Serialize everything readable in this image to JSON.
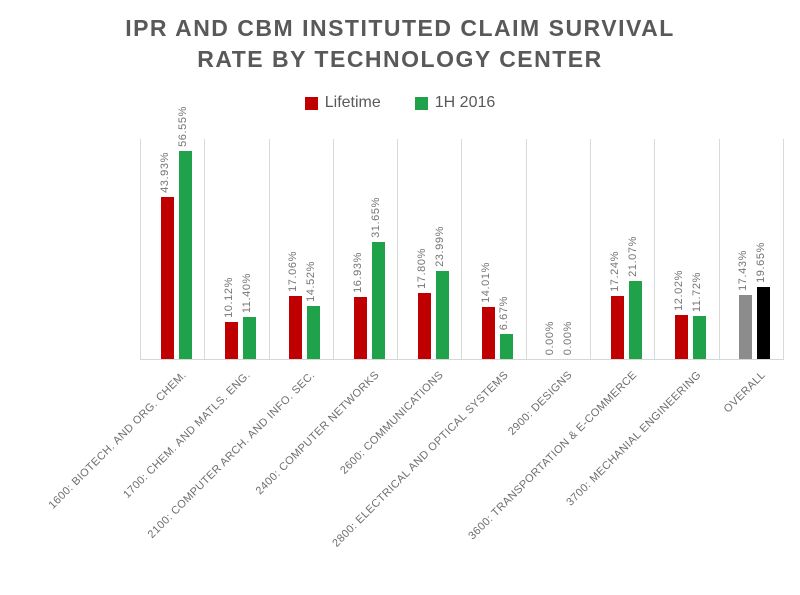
{
  "title_line1": "IPR AND CBM INSTITUTED CLAIM SURVIVAL",
  "title_line2": "RATE BY TECHNOLOGY CENTER",
  "colors": {
    "lifetime_red": "#c00000",
    "h1_2016_green": "#1fa24a",
    "overall_lifetime_gray": "#8c8c8c",
    "overall_1h2016_black": "#000000",
    "gridline": "#d9d9d9",
    "title_text": "#595959",
    "label_text": "#757575"
  },
  "chart_data": {
    "type": "bar",
    "title": "IPR AND CBM INSTITUTED CLAIM SURVIVAL RATE BY TECHNOLOGY CENTER",
    "xlabel": "",
    "ylabel": "",
    "ylim": [
      0,
      60
    ],
    "grid": "vertical-category-separators-only",
    "legend_position": "top-center",
    "categories": [
      "1600: BIOTECH. AND ORG. CHEM.",
      "1700: CHEM. AND MATLS. ENG.",
      "2100: COMPUTER ARCH. AND INFO. SEC.",
      "2400: COMPUTER NETWORKS",
      "2600: COMMUNICATIONS",
      "2800: ELECTRICAL AND OPTICAL SYSTEMS",
      "2900: DESIGNS",
      "3600: TRANSPORTATION & E-COMMERCE",
      "3700: MECHANIAL ENGINEERING",
      "OVERALL"
    ],
    "series": [
      {
        "name": "Lifetime",
        "color": "#c00000",
        "overall_color": "#8c8c8c",
        "values": [
          43.93,
          10.12,
          17.06,
          16.93,
          17.8,
          14.01,
          0.0,
          17.24,
          12.02,
          17.43
        ],
        "labels": [
          "43.93%",
          "10.12%",
          "17.06%",
          "16.93%",
          "17.80%",
          "14.01%",
          "0.00%",
          "17.24%",
          "12.02%",
          "17.43%"
        ]
      },
      {
        "name": "1H 2016",
        "color": "#1fa24a",
        "overall_color": "#000000",
        "values": [
          56.55,
          11.4,
          14.52,
          31.65,
          23.99,
          6.67,
          0.0,
          21.07,
          11.72,
          19.65
        ],
        "labels": [
          "56.55%",
          "11.40%",
          "14.52%",
          "31.65%",
          "23.99%",
          "6.67%",
          "0.00%",
          "21.07%",
          "11.72%",
          "19.65%"
        ]
      }
    ]
  }
}
